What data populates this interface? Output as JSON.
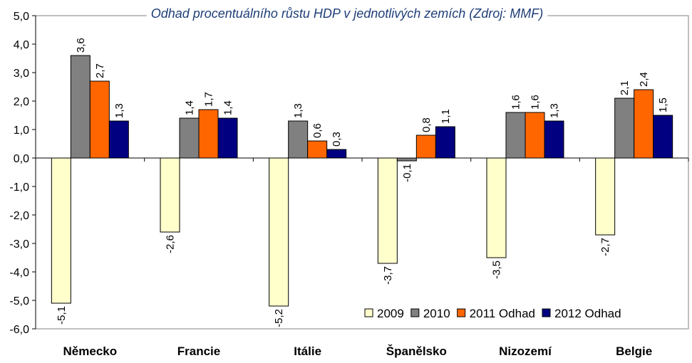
{
  "chart_data": {
    "type": "bar",
    "title": "Odhad procentuálního růstu HDP v jednotlivých zemích (Zdroj: MMF)",
    "categories": [
      "Německo",
      "Francie",
      "Itálie",
      "Španělsko",
      "Nizozemí",
      "Belgie"
    ],
    "series": [
      {
        "name": "2009",
        "color": "#ffffcc",
        "values": [
          -5.1,
          -2.6,
          -5.2,
          -3.7,
          -3.5,
          -2.7
        ],
        "labels": [
          "-5,1",
          "-2,6",
          "-5,2",
          "-3,7",
          "-3,5",
          "-2,7"
        ]
      },
      {
        "name": "2010",
        "color": "#808080",
        "values": [
          3.6,
          1.4,
          1.3,
          -0.1,
          1.6,
          2.1
        ],
        "labels": [
          "3,6",
          "1,4",
          "1,3",
          "-0,1",
          "1,6",
          "2,1"
        ]
      },
      {
        "name": "2011 Odhad",
        "color": "#ff6600",
        "values": [
          2.7,
          1.7,
          0.6,
          0.8,
          1.6,
          2.4
        ],
        "labels": [
          "2,7",
          "1,7",
          "0,6",
          "0,8",
          "1,6",
          "2,4"
        ]
      },
      {
        "name": "2012 Odhad",
        "color": "#000080",
        "values": [
          1.3,
          1.4,
          0.3,
          1.1,
          1.3,
          1.5
        ],
        "labels": [
          "1,3",
          "1,4",
          "0,3",
          "1,1",
          "1,3",
          "1,5"
        ]
      }
    ],
    "ylim": [
      -6,
      5
    ],
    "yticks": [
      "5,0",
      "4,0",
      "3,0",
      "2,0",
      "1,0",
      "0,0",
      "-1,0",
      "-2,0",
      "-3,0",
      "-4,0",
      "-5,0",
      "-6,0"
    ],
    "legend_position": "bottom-right",
    "grid": false
  }
}
